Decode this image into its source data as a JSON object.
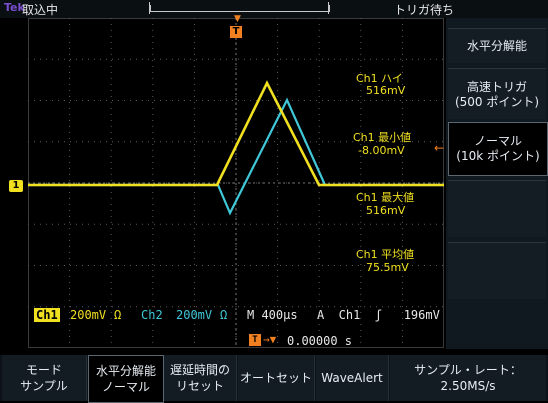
{
  "topbar": {
    "brand": "Tek",
    "acq_status": "取込中",
    "trigger_status": "トリガ待ち"
  },
  "colors": {
    "ch1": "#f0e020",
    "ch2": "#40c8d8",
    "trigger": "#f08020",
    "readout_ch2": "#40c8d8"
  },
  "measurements": [
    {
      "label": "Ch1 ハイ",
      "value": "516mV"
    },
    {
      "label": "Ch1 最小値",
      "value": "-8.00mV"
    },
    {
      "label": "Ch1 最大値",
      "value": "516mV"
    },
    {
      "label": "Ch1 平均値",
      "value": "75.5mV"
    }
  ],
  "readout": {
    "ch1_tag": "Ch1",
    "ch1_scale": "200mV",
    "ch2_tag": "Ch2",
    "ch2_scale": "200mV",
    "ohm": "Ω",
    "timebase": "M 400μs",
    "trigger": "A  Ch1  ʃ   196mV",
    "trigger_pos": "0.00000 s"
  },
  "right_menu": {
    "title": "水平分解能",
    "fast_trigger": "高速トリガ\n(500 ポイント)",
    "normal": "ノーマル\n(10k ポイント)"
  },
  "bottom_menu": {
    "mode": "モード\nサンプル",
    "hres": "水平分解能\nノーマル",
    "delay": "遅延時間の\nリセット",
    "autoset": "オートセット",
    "wavealert": "WaveAlert",
    "sample_rate": "サンプル・レート：\n2.50MS/s"
  },
  "marker_ch1": "1",
  "marker_trig": "T"
}
